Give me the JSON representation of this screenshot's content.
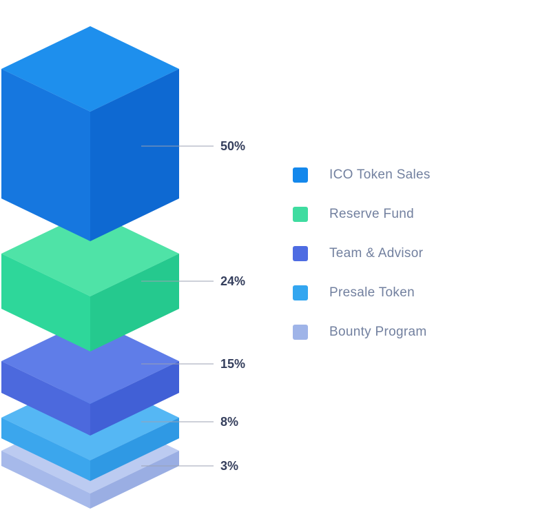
{
  "chart_data": {
    "type": "isometric-stacked-blocks",
    "legend_position": "right",
    "value_unit": "%",
    "items": [
      {
        "label": "ICO Token Sales",
        "value": 50,
        "value_label": "50%",
        "colors": {
          "top": "#1E8FED",
          "left": "#1677DF",
          "right": "#0E69D2",
          "legend": "#1488EC"
        }
      },
      {
        "label": "Reserve Fund",
        "value": 24,
        "value_label": "24%",
        "colors": {
          "top": "#4FE3A7",
          "left": "#2ED79A",
          "right": "#25C98E",
          "legend": "#3FDCA0"
        }
      },
      {
        "label": "Team & Advisor",
        "value": 15,
        "value_label": "15%",
        "colors": {
          "top": "#5F7DE8",
          "left": "#4C69DD",
          "right": "#4160D6",
          "legend": "#4E6CE2"
        }
      },
      {
        "label": "Presale Token",
        "value": 8,
        "value_label": "8%",
        "colors": {
          "top": "#55B7F4",
          "left": "#3BA6ED",
          "right": "#2F99E4",
          "legend": "#33A6F0"
        }
      },
      {
        "label": "Bounty Program",
        "value": 3,
        "value_label": "3%",
        "colors": {
          "top": "#BCCBF1",
          "left": "#A6B9EA",
          "right": "#9AAEE3",
          "legend": "#9FB4E8"
        }
      }
    ],
    "styles": {
      "percent_label_color": "#343E5C",
      "legend_label_color": "#72809F",
      "leader_line_color": "#9BA1B3"
    }
  }
}
